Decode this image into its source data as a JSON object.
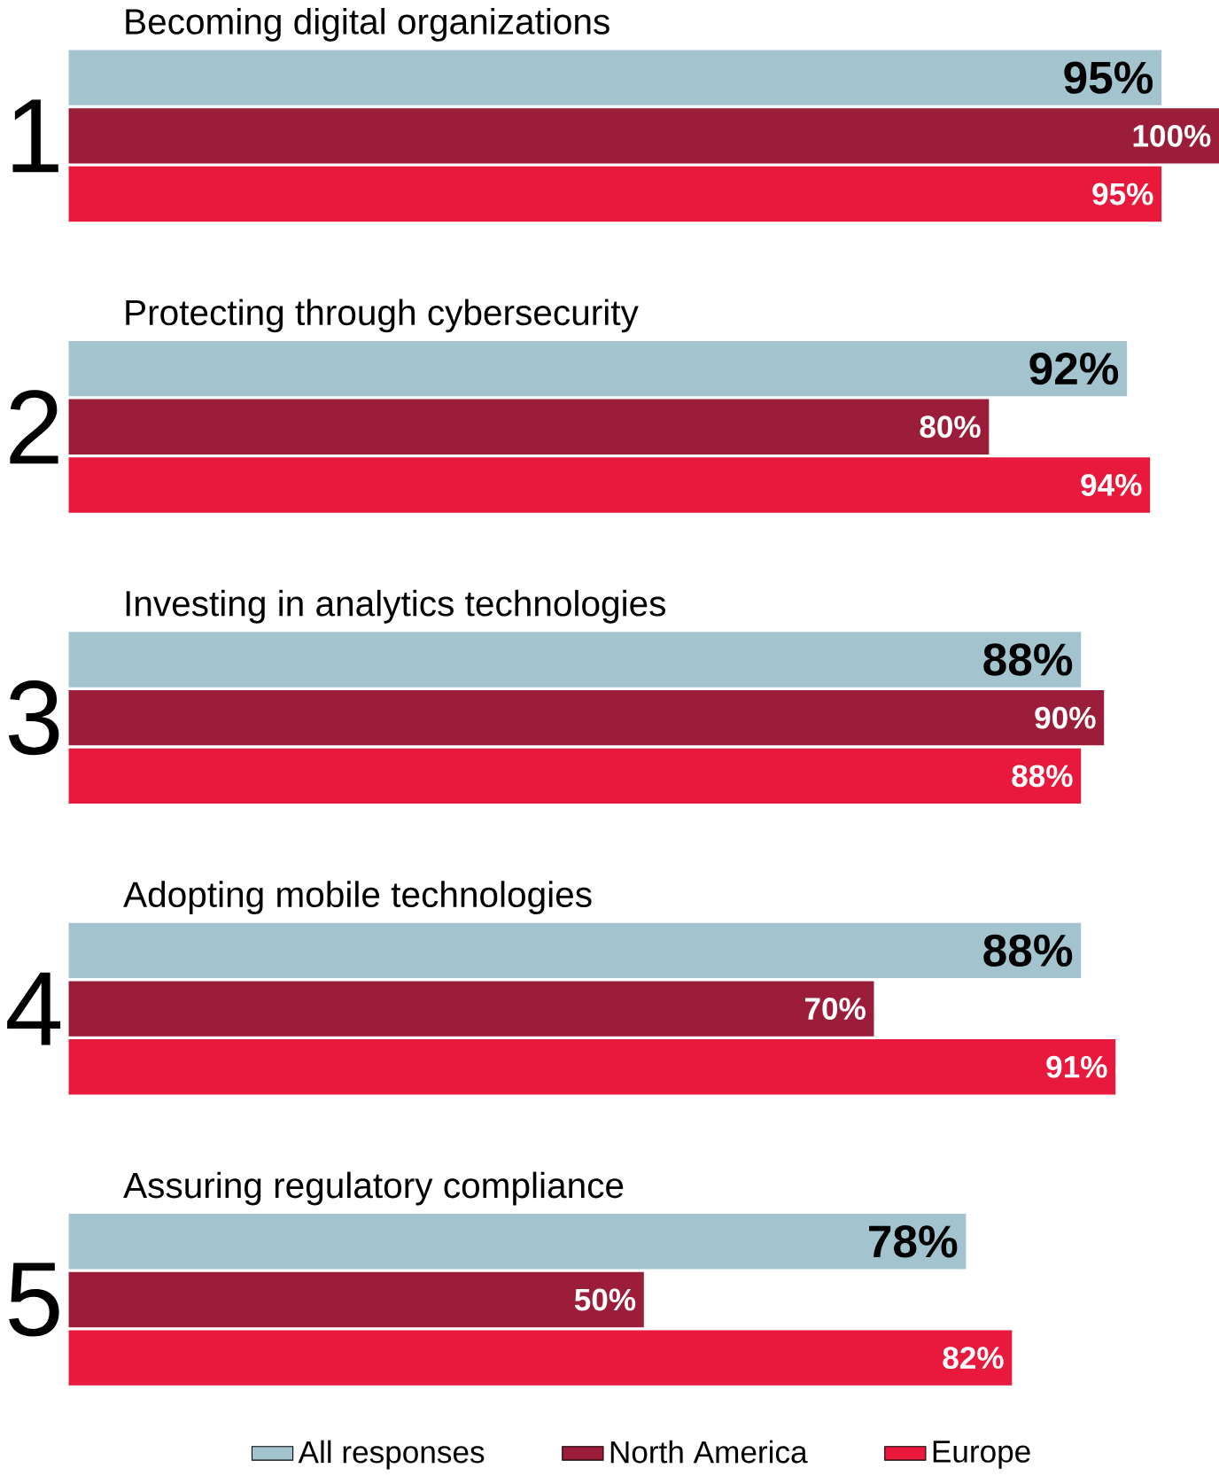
{
  "chart_data": {
    "type": "bar",
    "orientation": "horizontal",
    "categories": [
      "Becoming digital organizations",
      "Protecting through cybersecurity",
      "Investing in analytics technologies",
      "Adopting mobile technologies",
      "Assuring regulatory compliance"
    ],
    "annotations": [
      "1",
      "2",
      "3",
      "4",
      "5"
    ],
    "xlim": [
      0,
      100
    ],
    "legend": "bottom",
    "series": [
      {
        "name": "All responses",
        "color": "#a3c4cf",
        "values": [
          95,
          92,
          88,
          88,
          78
        ],
        "value_labels": [
          "95%",
          "92%",
          "88%",
          "88%",
          "78%"
        ]
      },
      {
        "name": "North America",
        "color": "#9b1d3a",
        "values": [
          100,
          80,
          90,
          70,
          50
        ],
        "value_labels": [
          "100%",
          "80%",
          "90%",
          "70%",
          "50%"
        ]
      },
      {
        "name": "Europe",
        "color": "#e8193c",
        "values": [
          95,
          94,
          88,
          91,
          82
        ],
        "value_labels": [
          "95%",
          "94%",
          "88%",
          "91%",
          "82%"
        ]
      }
    ]
  }
}
